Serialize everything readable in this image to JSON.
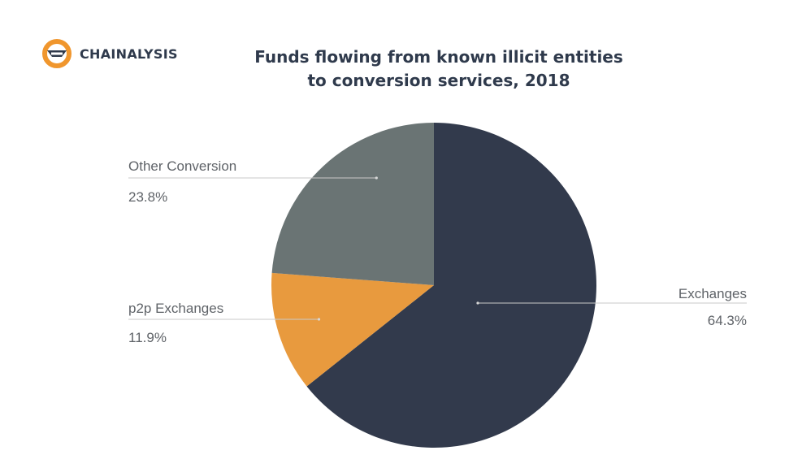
{
  "brand": {
    "name": "CHAINALYSIS",
    "logo_icon": "chainalysis-logo-icon",
    "logo_colors": [
      "#f0962d",
      "#2f3a4c"
    ]
  },
  "chart_data": {
    "type": "pie",
    "title_lines": [
      "Funds flowing from known illicit entities",
      "to conversion services, 2018"
    ],
    "unit": "%",
    "start_angle_deg": 0,
    "direction": "clockwise",
    "slices": [
      {
        "label": "Exchanges",
        "value": 64.3,
        "display": "64.3%",
        "color": "#323a4c"
      },
      {
        "label": "p2p Exchanges",
        "value": 11.9,
        "display": "11.9%",
        "color": "#e89a3e"
      },
      {
        "label": "Other Conversion",
        "value": 23.8,
        "display": "23.8%",
        "color": "#6a7474"
      }
    ]
  }
}
